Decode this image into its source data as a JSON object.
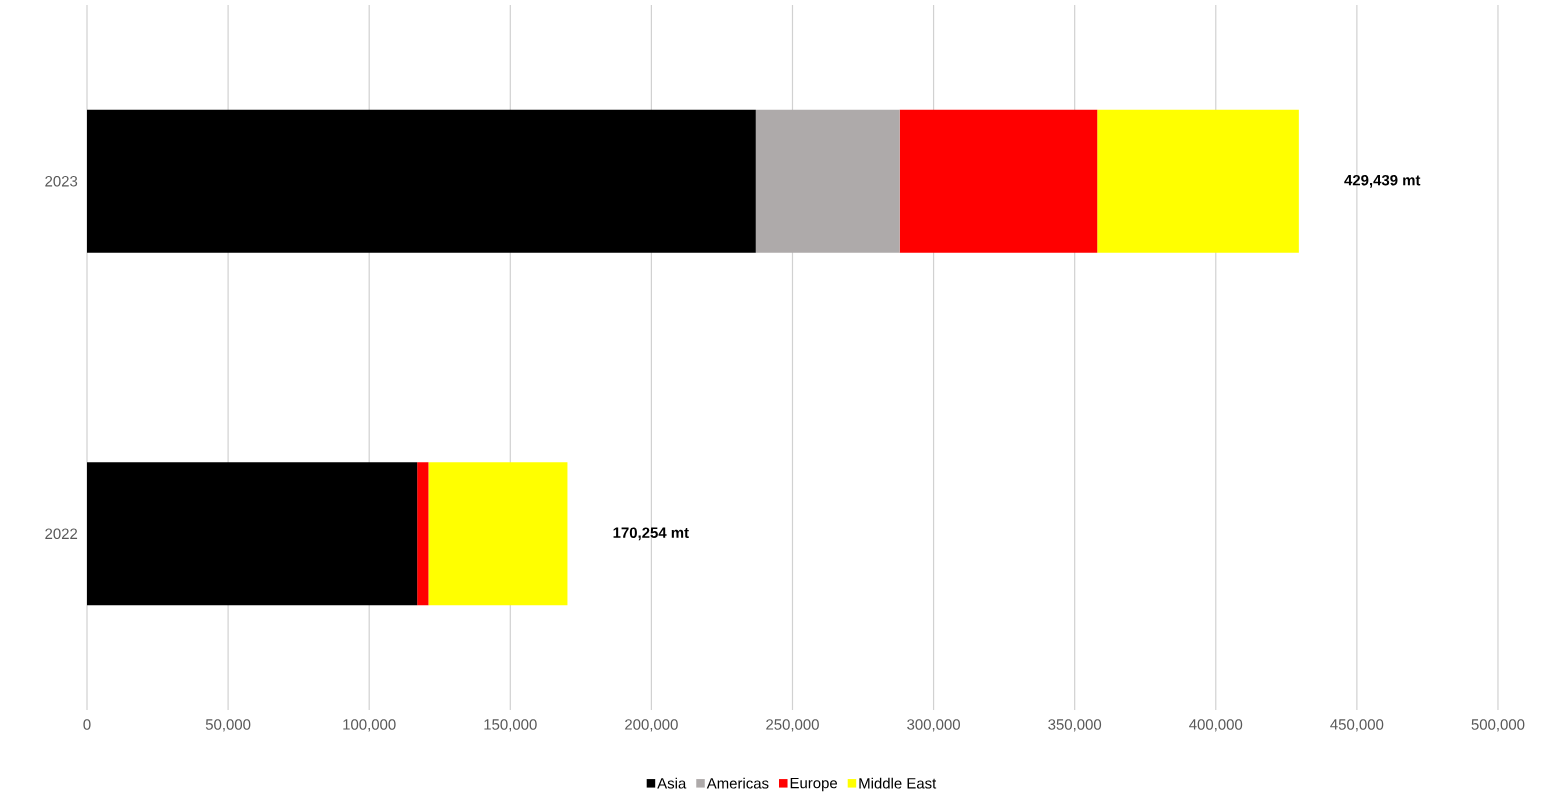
{
  "chart_data": {
    "type": "bar",
    "orientation": "horizontal",
    "stacked": true,
    "categories": [
      "2023",
      "2022"
    ],
    "series": [
      {
        "name": "Asia",
        "color": "#000000",
        "values": [
          237000,
          117000
        ]
      },
      {
        "name": "Americas",
        "color": "#aeaaaa",
        "values": [
          51000,
          0
        ]
      },
      {
        "name": "Europe",
        "color": "#ff0000",
        "values": [
          70000,
          4000
        ]
      },
      {
        "name": "Middle East",
        "color": "#ffff00",
        "values": [
          71439,
          49254
        ]
      }
    ],
    "totals": [
      "429,439 mt",
      "170,254 mt"
    ],
    "xlim": [
      0,
      500000
    ],
    "xticks": [
      0,
      {
        "value": 50000,
        "label": "50,000"
      },
      {
        "value": 100000,
        "label": "100,000"
      },
      {
        "value": 150000,
        "label": "150,000"
      },
      {
        "value": 200000,
        "label": "200,000"
      },
      {
        "value": 250000,
        "label": "250,000"
      },
      {
        "value": 300000,
        "label": "300,000"
      },
      {
        "value": 350000,
        "label": "350,000"
      },
      {
        "value": 400000,
        "label": "400,000"
      },
      {
        "value": 450000,
        "label": "450,000"
      },
      {
        "value": 500000,
        "label": "500,000"
      }
    ],
    "grid": "x",
    "legend": "bottom"
  }
}
